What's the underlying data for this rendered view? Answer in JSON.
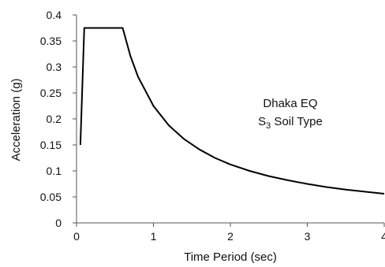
{
  "chart_data": {
    "type": "line",
    "title": "",
    "xlabel": "Time Period  (sec)",
    "ylabel": "Acceleration (g)",
    "xlim": [
      0,
      4
    ],
    "ylim": [
      0,
      0.4
    ],
    "x_ticks": [
      "0",
      "1",
      "2",
      "3",
      "4"
    ],
    "y_ticks": [
      "0",
      "0.05",
      "0.1",
      "0.15",
      "0.2",
      "0.25",
      "0.3",
      "0.35",
      "0.4"
    ],
    "grid": false,
    "legend": "none",
    "annotation": {
      "line1": "Dhaka EQ",
      "line2_prefix": "S",
      "line2_sub": "3",
      "line2_suffix": " Soil Type"
    },
    "series": [
      {
        "color": "#000000",
        "x": [
          0.05,
          0.1,
          0.6,
          0.7,
          0.8,
          1.0,
          1.2,
          1.4,
          1.6,
          1.8,
          2.0,
          2.25,
          2.5,
          2.75,
          3.0,
          3.25,
          3.5,
          3.75,
          4.0
        ],
        "y": [
          0.15,
          0.375,
          0.375,
          0.321,
          0.281,
          0.225,
          0.1875,
          0.161,
          0.141,
          0.125,
          0.1125,
          0.1,
          0.09,
          0.082,
          0.075,
          0.069,
          0.064,
          0.06,
          0.056
        ]
      }
    ]
  }
}
